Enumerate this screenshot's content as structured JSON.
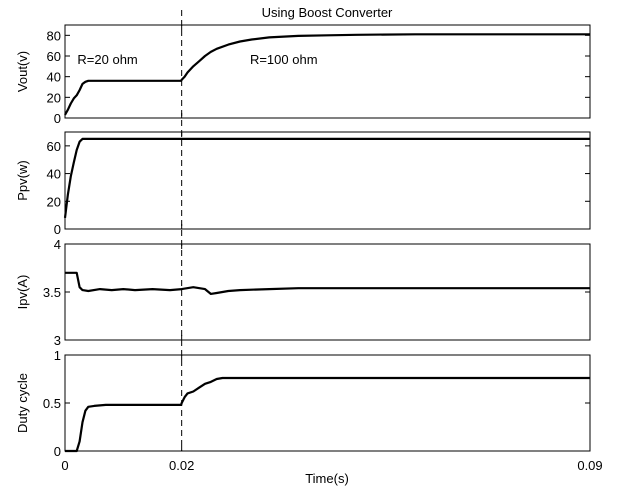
{
  "chart_data": {
    "title": "Using Boost Converter",
    "xlabel": "Time(s)",
    "xlim": [
      0,
      0.09
    ],
    "xticks": [
      0,
      0.02,
      0.09
    ],
    "xtick_labels": [
      "0",
      "0.02",
      "0.09"
    ],
    "event_line_x": 0.02,
    "panels": [
      {
        "type": "line",
        "ylabel": "Vout(v)",
        "ylim": [
          0,
          90
        ],
        "yticks": [
          0,
          20,
          40,
          60,
          80
        ],
        "annotations": [
          {
            "text": "R=20 ohm",
            "x": 0.0073,
            "y": 57
          },
          {
            "text": "R=100 ohm",
            "x": 0.0375,
            "y": 57
          }
        ],
        "series": [
          {
            "x": [
              0,
              0.0005,
              0.001,
              0.0015,
              0.002,
              0.0025,
              0.003,
              0.0035,
              0.004,
              0.005,
              0.007,
              0.01,
              0.015,
              0.0199,
              0.02,
              0.0205,
              0.021,
              0.022,
              0.023,
              0.024,
              0.025,
              0.026,
              0.028,
              0.03,
              0.032,
              0.035,
              0.04,
              0.045,
              0.05,
              0.06,
              0.07,
              0.08,
              0.09
            ],
            "y": [
              3,
              8,
              14,
              19,
              22,
              27,
              33,
              35,
              36,
              36,
              36,
              36,
              36,
              36,
              37,
              40,
              44,
              50,
              55,
              60,
              64,
              67,
              71,
              74,
              76,
              78,
              79.5,
              80,
              80.5,
              81,
              81,
              81,
              81
            ]
          }
        ]
      },
      {
        "type": "line",
        "ylabel": "Ppv(w)",
        "ylim": [
          0,
          70
        ],
        "yticks": [
          0,
          20,
          40,
          60
        ],
        "series": [
          {
            "x": [
              0,
              0.0005,
              0.001,
              0.0015,
              0.002,
              0.0025,
              0.003,
              0.09
            ],
            "y": [
              8,
              25,
              38,
              48,
              57,
              63,
              65,
              65
            ]
          }
        ]
      },
      {
        "type": "line",
        "ylabel": "Ipv(A)",
        "ylim": [
          3,
          4
        ],
        "yticks": [
          3,
          3.5,
          4
        ],
        "series": [
          {
            "x": [
              0,
              0.002,
              0.0025,
              0.003,
              0.004,
              0.006,
              0.008,
              0.01,
              0.012,
              0.015,
              0.018,
              0.02,
              0.022,
              0.024,
              0.025,
              0.026,
              0.028,
              0.03,
              0.035,
              0.04,
              0.05,
              0.06,
              0.07,
              0.08,
              0.09
            ],
            "y": [
              3.7,
              3.7,
              3.55,
              3.52,
              3.51,
              3.53,
              3.52,
              3.53,
              3.52,
              3.53,
              3.52,
              3.53,
              3.55,
              3.53,
              3.48,
              3.49,
              3.51,
              3.52,
              3.53,
              3.54,
              3.54,
              3.54,
              3.54,
              3.54,
              3.54
            ]
          }
        ]
      },
      {
        "type": "line",
        "ylabel": "Duty cycle",
        "ylim": [
          0,
          1
        ],
        "yticks": [
          0,
          0.5,
          1
        ],
        "series": [
          {
            "x": [
              0,
              0.002,
              0.0025,
              0.003,
              0.0035,
              0.004,
              0.005,
              0.007,
              0.01,
              0.015,
              0.0199,
              0.02,
              0.0205,
              0.021,
              0.022,
              0.023,
              0.024,
              0.025,
              0.026,
              0.027,
              0.03,
              0.04,
              0.05,
              0.06,
              0.07,
              0.08,
              0.09
            ],
            "y": [
              0,
              0,
              0.1,
              0.3,
              0.42,
              0.46,
              0.47,
              0.48,
              0.48,
              0.48,
              0.48,
              0.5,
              0.56,
              0.6,
              0.62,
              0.66,
              0.7,
              0.72,
              0.75,
              0.76,
              0.76,
              0.76,
              0.76,
              0.76,
              0.76,
              0.76,
              0.76
            ]
          }
        ]
      }
    ]
  }
}
